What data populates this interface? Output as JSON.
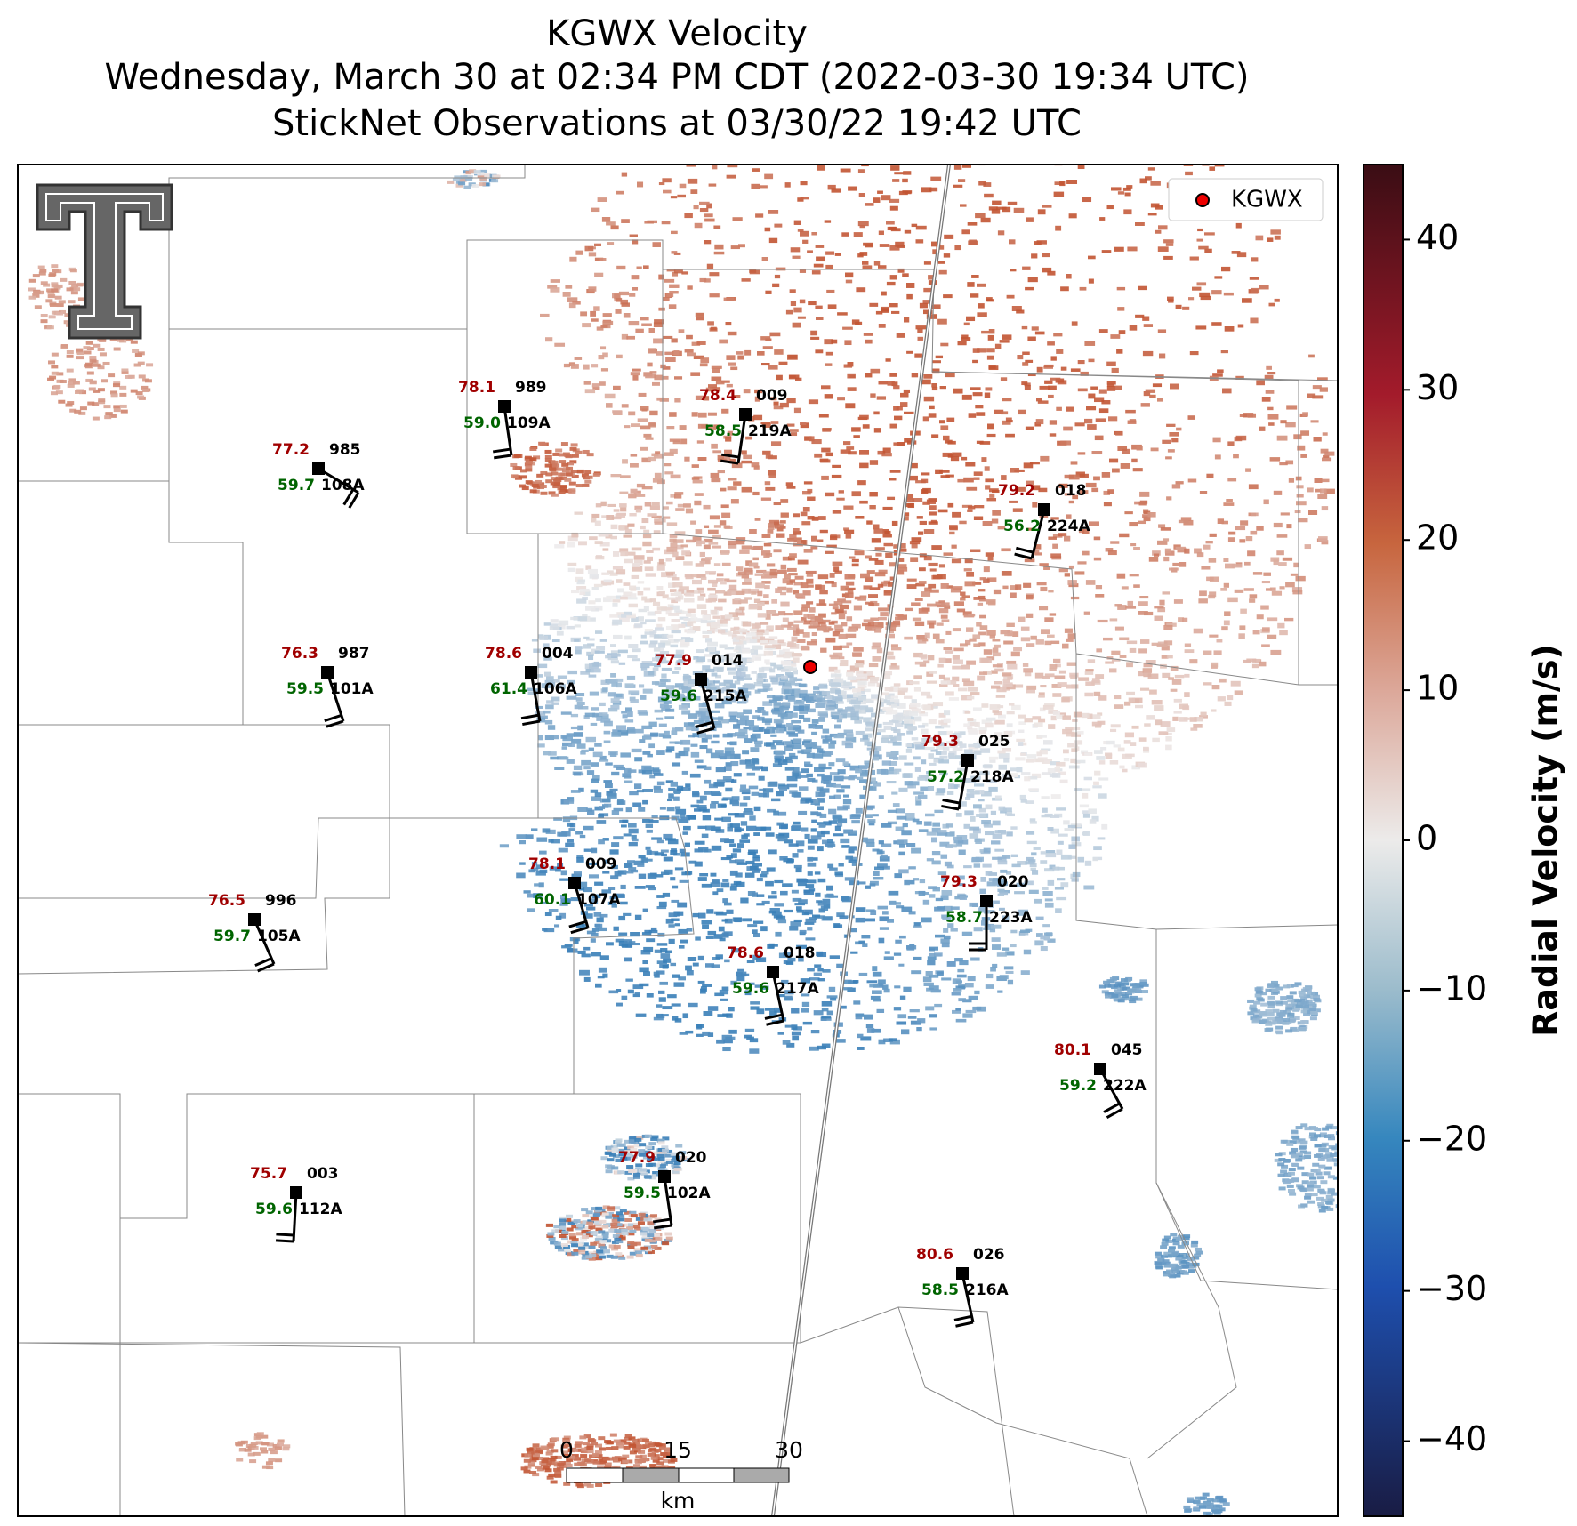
{
  "map": {
    "title": [
      "KGWX Velocity",
      "Wednesday, March 30 at 02:34 PM CDT (2022-03-30 19:34 UTC)",
      "StickNet Observations at 03/30/22 19:42 UTC"
    ],
    "legend": "KGWX",
    "colorbar": {
      "label": "Radial Velocity (m/s)",
      "lim": [
        -45,
        45
      ],
      "ticks": [
        {
          "value": -40,
          "label": "−40"
        },
        {
          "value": -30,
          "label": "−30"
        },
        {
          "value": -20,
          "label": "−20"
        },
        {
          "value": -10,
          "label": "−10"
        },
        0,
        10,
        20,
        30,
        40
      ]
    },
    "scale_bar": {
      "ticks": [
        "0",
        "15",
        "30"
      ],
      "unit": "km"
    },
    "stations": [
      {
        "id": "108A",
        "temperature": "77.2",
        "dewpoint": "59.7",
        "value": "985"
      },
      {
        "id": "109A",
        "temperature": "78.1",
        "dewpoint": "59.0",
        "value": "989"
      },
      {
        "id": "219A",
        "temperature": "78.4",
        "dewpoint": "58.5",
        "value": "009"
      },
      {
        "id": "224A",
        "temperature": "79.2",
        "dewpoint": "56.2",
        "value": "018"
      },
      {
        "id": "101A",
        "temperature": "76.3",
        "dewpoint": "59.5",
        "value": "987"
      },
      {
        "id": "106A",
        "temperature": "78.6",
        "dewpoint": "61.4",
        "value": "004"
      },
      {
        "id": "215A",
        "temperature": "77.9",
        "dewpoint": "59.6",
        "value": "014"
      },
      {
        "id": "218A",
        "temperature": "79.3",
        "dewpoint": "57.2",
        "value": "025"
      },
      {
        "id": "107A",
        "temperature": "78.1",
        "dewpoint": "60.1",
        "value": "009"
      },
      {
        "id": "105A",
        "temperature": "76.5",
        "dewpoint": "59.7",
        "value": "996"
      },
      {
        "id": "223A",
        "temperature": "79.3",
        "dewpoint": "58.7",
        "value": "020"
      },
      {
        "id": "217A",
        "temperature": "78.6",
        "dewpoint": "59.6",
        "value": "018"
      },
      {
        "id": "222A",
        "temperature": "80.1",
        "dewpoint": "59.2",
        "value": "045"
      },
      {
        "id": "112A",
        "temperature": "75.7",
        "dewpoint": "59.6",
        "value": "003"
      },
      {
        "id": "102A",
        "temperature": "77.9",
        "dewpoint": "59.5",
        "value": "020"
      },
      {
        "id": "216A",
        "temperature": "80.6",
        "dewpoint": "58.5",
        "value": "026"
      }
    ]
  }
}
